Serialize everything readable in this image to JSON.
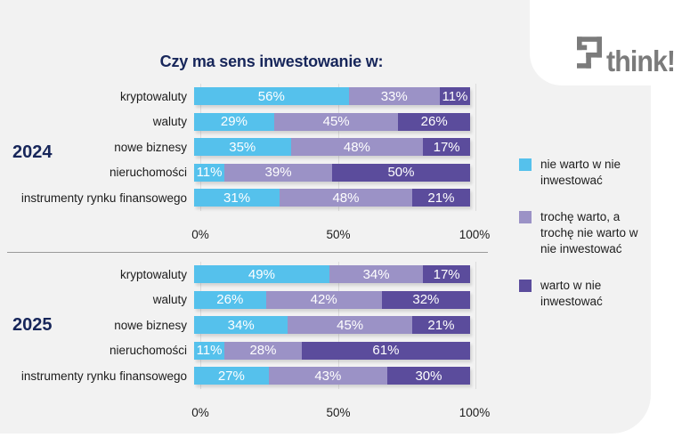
{
  "title": "Czy ma sens inwestowanie w:",
  "logo": {
    "text": "think!"
  },
  "colors": {
    "background": "#f2f2f2",
    "card": "#ffffff",
    "title_navy": "#17265a",
    "cyan": "#55c1ec",
    "light_purple": "#9b92c6",
    "dark_purple": "#5b4c9c",
    "logo_gray": "#7b7b7b"
  },
  "legend": {
    "items": [
      {
        "label": "nie warto w nie inwestować",
        "color": "#55c1ec"
      },
      {
        "label": "trochę warto, a trochę nie warto w nie inwestować",
        "color": "#9b92c6"
      },
      {
        "label": "warto w nie inwestować",
        "color": "#5b4c9c"
      }
    ]
  },
  "chart_data": {
    "type": "bar",
    "orientation": "horizontal",
    "stacked": true,
    "title": "Czy ma sens inwestowanie w:",
    "categories": [
      "kryptowaluty",
      "waluty",
      "nowe biznesy",
      "nieruchomości",
      "instrumenty rynku finansowego"
    ],
    "x_ticks": [
      "0%",
      "50%",
      "100%"
    ],
    "xlim": [
      0,
      100
    ],
    "unit": "%",
    "legend_position": "right",
    "grid": true,
    "groups": [
      {
        "year": "2024",
        "series": [
          {
            "name": "nie warto w nie inwestować",
            "color": "#55c1ec",
            "values": [
              56,
              29,
              35,
              11,
              31
            ]
          },
          {
            "name": "trochę warto, a trochę nie warto w nie inwestować",
            "color": "#9b92c6",
            "values": [
              33,
              45,
              48,
              39,
              48
            ]
          },
          {
            "name": "warto w nie inwestować",
            "color": "#5b4c9c",
            "values": [
              11,
              26,
              17,
              50,
              21
            ]
          }
        ]
      },
      {
        "year": "2025",
        "series": [
          {
            "name": "nie warto w nie inwestować",
            "color": "#55c1ec",
            "values": [
              49,
              26,
              34,
              11,
              27
            ]
          },
          {
            "name": "trochę warto, a trochę nie warto w nie inwestować",
            "color": "#9b92c6",
            "values": [
              34,
              42,
              45,
              28,
              43
            ]
          },
          {
            "name": "warto w nie inwestować",
            "color": "#5b4c9c",
            "values": [
              17,
              32,
              21,
              61,
              30
            ]
          }
        ]
      }
    ]
  }
}
